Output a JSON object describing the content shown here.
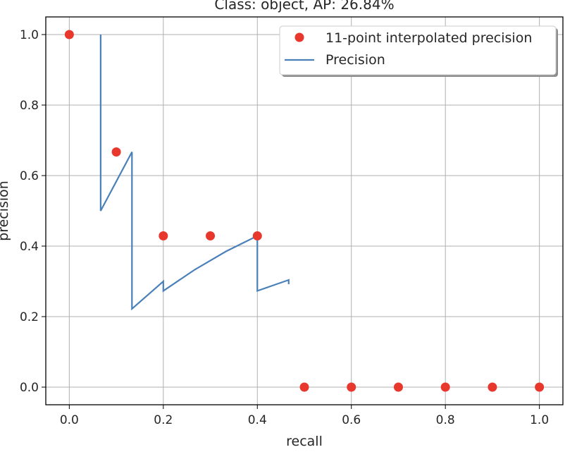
{
  "chart_data": {
    "type": "line",
    "title": "Class: object, AP: 26.84%",
    "xlabel": "recall",
    "ylabel": "precision",
    "xlim": [
      -0.05,
      1.05
    ],
    "ylim": [
      -0.05,
      1.05
    ],
    "xticks": [
      0.0,
      0.2,
      0.4,
      0.6,
      0.8,
      1.0
    ],
    "yticks": [
      0.0,
      0.2,
      0.4,
      0.6,
      0.8,
      1.0
    ],
    "xtick_labels": [
      "0.0",
      "0.2",
      "0.4",
      "0.6",
      "0.8",
      "1.0"
    ],
    "ytick_labels": [
      "0.0",
      "0.2",
      "0.4",
      "0.6",
      "0.8",
      "1.0"
    ],
    "grid": true,
    "legend_position": "top-right",
    "series": [
      {
        "name": "11-point interpolated precision",
        "kind": "scatter",
        "color": "#e8372c",
        "x": [
          0.0,
          0.1,
          0.2,
          0.3,
          0.4,
          0.5,
          0.6,
          0.7,
          0.8,
          0.9,
          1.0
        ],
        "y": [
          1.0,
          0.667,
          0.429,
          0.429,
          0.429,
          0.0,
          0.0,
          0.0,
          0.0,
          0.0,
          0.0
        ]
      },
      {
        "name": "Precision",
        "kind": "line",
        "color": "#4a80b8",
        "x": [
          0.0667,
          0.0667,
          0.1333,
          0.1333,
          0.2,
          0.2,
          0.2667,
          0.3333,
          0.4,
          0.4,
          0.4667,
          0.4667
        ],
        "y": [
          1.0,
          0.5,
          0.667,
          0.222,
          0.3,
          0.273,
          0.333,
          0.385,
          0.429,
          0.273,
          0.304,
          0.292
        ]
      }
    ]
  }
}
